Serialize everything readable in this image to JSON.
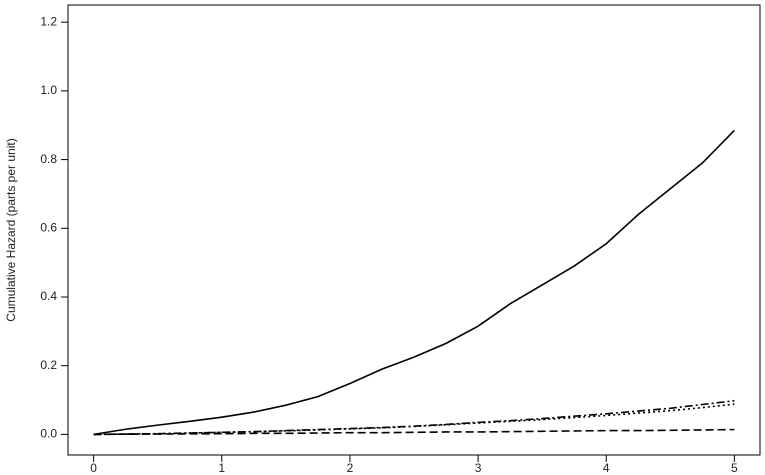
{
  "chart_data": {
    "type": "line",
    "y_label": "Cumulative Hazard (parts per unit)",
    "x": [
      0,
      0.25,
      0.5,
      0.75,
      1,
      1.25,
      1.5,
      1.75,
      2,
      2.25,
      2.5,
      2.75,
      3,
      3.25,
      3.5,
      3.75,
      4,
      4.25,
      4.5,
      4.75,
      5
    ],
    "series": [
      {
        "color": "#000000",
        "dash": "solid",
        "values": [
          0,
          0.015,
          0.027,
          0.038,
          0.05,
          0.065,
          0.085,
          0.11,
          0.148,
          0.19,
          0.225,
          0.265,
          0.315,
          0.38,
          0.435,
          0.49,
          0.555,
          0.64,
          0.715,
          0.79,
          0.885
        ]
      },
      {
        "color": "#000000",
        "dash": "dashdot",
        "values": [
          0,
          0.001,
          0.002,
          0.004,
          0.006,
          0.008,
          0.011,
          0.014,
          0.017,
          0.02,
          0.024,
          0.029,
          0.035,
          0.04,
          0.046,
          0.053,
          0.06,
          0.068,
          0.076,
          0.087,
          0.098
        ]
      },
      {
        "color": "#000000",
        "dash": "dotted",
        "values": [
          0,
          0.001,
          0.002,
          0.004,
          0.006,
          0.008,
          0.01,
          0.013,
          0.016,
          0.019,
          0.023,
          0.028,
          0.033,
          0.038,
          0.043,
          0.049,
          0.055,
          0.062,
          0.069,
          0.078,
          0.088
        ]
      },
      {
        "color": "#000000",
        "dash": "dashed",
        "values": [
          0,
          0.0005,
          0.001,
          0.0015,
          0.002,
          0.003,
          0.003,
          0.004,
          0.005,
          0.005,
          0.006,
          0.007,
          0.007,
          0.008,
          0.009,
          0.01,
          0.011,
          0.011,
          0.012,
          0.013,
          0.014
        ]
      }
    ],
    "xlim": [
      -0.2,
      5.2
    ],
    "ylim": [
      -0.06,
      1.25
    ],
    "xticks": [
      0,
      1,
      2,
      3,
      4,
      5
    ],
    "yticks": [
      {
        "value": 0,
        "label": "0.0"
      },
      0.2,
      0.4,
      0.6,
      0.8,
      {
        "value": 1,
        "label": "1.0"
      },
      1.2
    ]
  }
}
